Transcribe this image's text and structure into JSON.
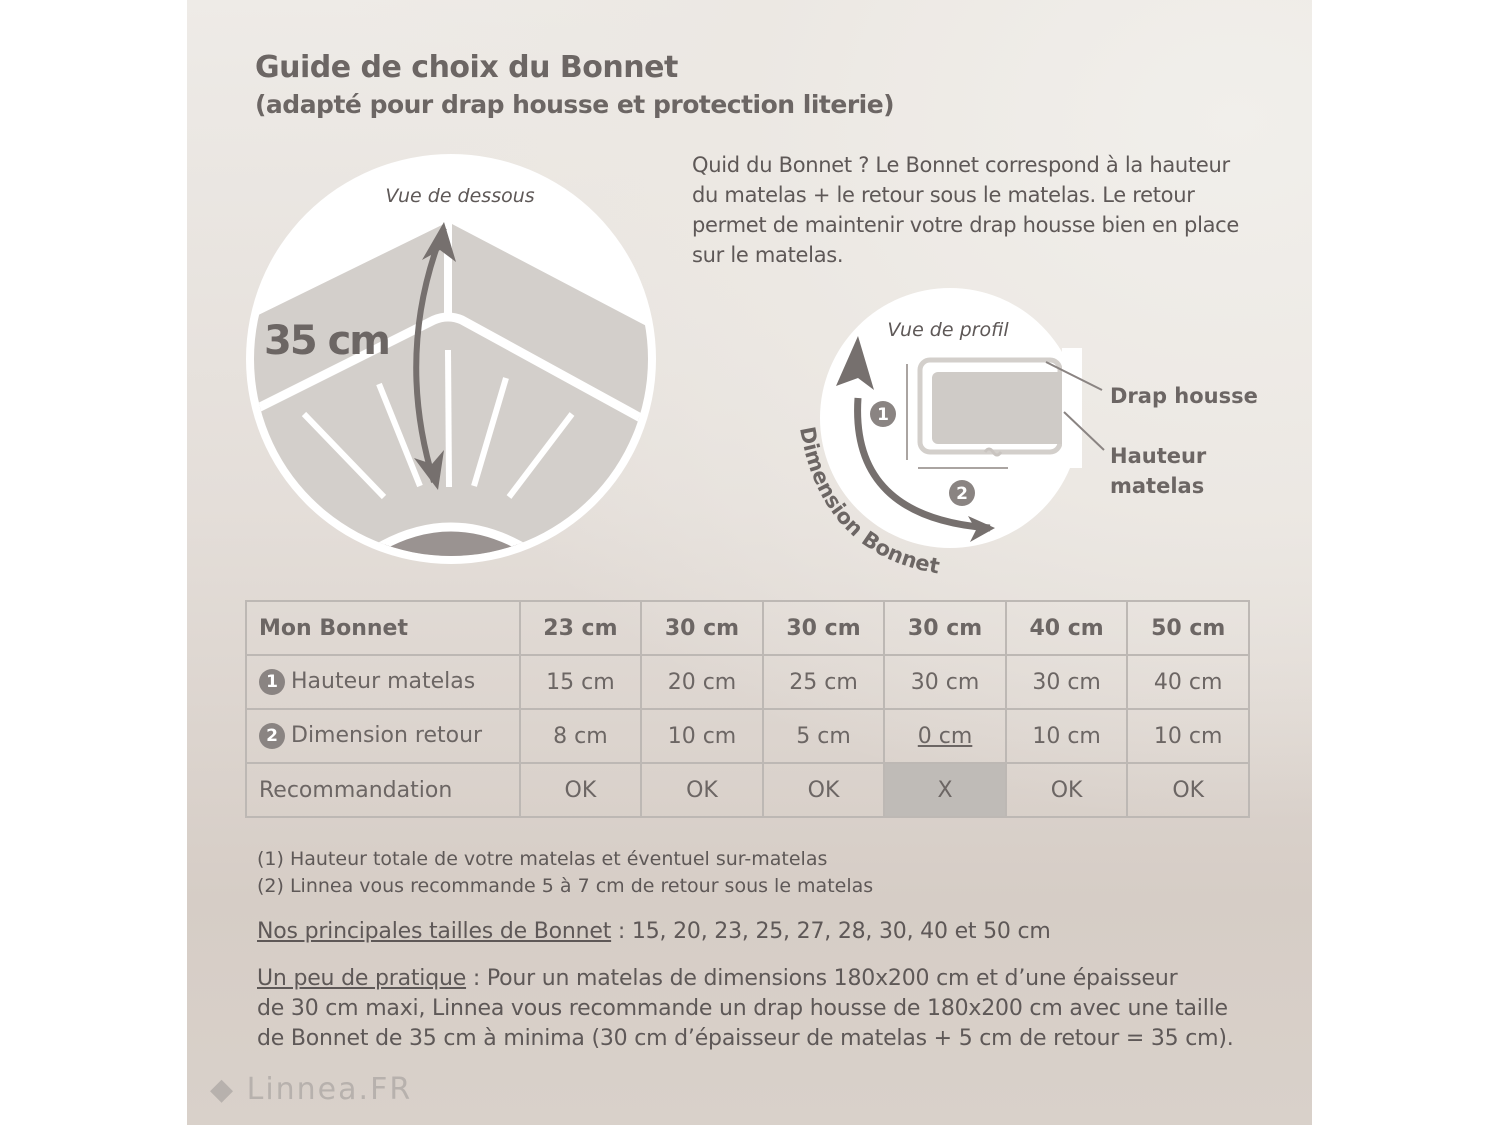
{
  "title": "Guide de choix du Bonnet",
  "subtitle": "(adapté pour drap housse et protection literie)",
  "intro": "Quid du Bonnet ? Le Bonnet correspond à la hauteur du matelas + le retour sous le matelas. Le retour permet de maintenir votre drap housse bien en place sur le matelas.",
  "diagram_bottom": {
    "label": "Vue de dessous",
    "measure": "35 cm"
  },
  "diagram_profile": {
    "label": "Vue de profil",
    "arrow_label": "Dimension Bonnet",
    "callout_sheet": "Drap housse",
    "callout_height_1": "Hauteur",
    "callout_height_2": "matelas",
    "marker_1": "1",
    "marker_2": "2"
  },
  "table": {
    "header": [
      "Mon Bonnet",
      "23 cm",
      "30 cm",
      "30 cm",
      "30 cm",
      "40 cm",
      "50 cm"
    ],
    "rows": [
      {
        "marker": "1",
        "label": "Hauteur matelas",
        "values": [
          "15 cm",
          "20 cm",
          "25 cm",
          "30 cm",
          "30 cm",
          "40 cm"
        ]
      },
      {
        "marker": "2",
        "label": "Dimension retour",
        "values": [
          "8 cm",
          "10 cm",
          "5 cm",
          "0 cm",
          "10 cm",
          "10 cm"
        ]
      },
      {
        "marker": "",
        "label": "Recommandation",
        "values": [
          "OK",
          "OK",
          "OK",
          "X",
          "OK",
          "OK"
        ]
      }
    ],
    "highlight_color": "#bfbbb7"
  },
  "notes": [
    "(1) Hauteur totale de votre matelas et éventuel sur-matelas",
    "(2) Linnea vous recommande 5 à 7 cm de retour sous le matelas"
  ],
  "sizes": {
    "label": "Nos principales tailles de Bonnet",
    "text": " : 15, 20, 23, 25, 27, 28, 30, 40 et 50 cm"
  },
  "practice": {
    "label": "Un peu de pratique",
    "line1": " : Pour un matelas de dimensions 180x200 cm et d’une épaisseur",
    "line2": "de 30 cm maxi, Linnea vous recommande un drap housse de 180x200 cm avec une taille",
    "line3": "de Bonnet de 35 cm à minima (30 cm d’épaisseur de matelas + 5 cm de retour = 35 cm)."
  },
  "logo": "Linnea.FR"
}
